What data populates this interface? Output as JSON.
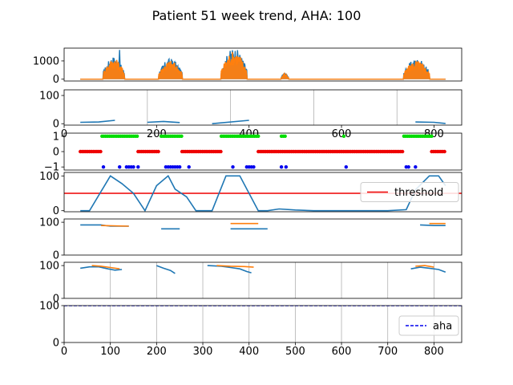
{
  "figure": {
    "title": "Patient 51 week trend, AHA: 100"
  },
  "chart_data": [
    {
      "type": "line",
      "xlim": [
        0,
        860
      ],
      "ylim": [
        -100,
        1700
      ],
      "yticks": [
        0,
        1000
      ],
      "xticks": [],
      "x_grid": [],
      "series": [
        {
          "color": "#1f77b4",
          "style": "bursts",
          "amplitude": 1.1,
          "x": [],
          "y": []
        },
        {
          "color": "#ff7f0e",
          "style": "bursts",
          "amplitude": 1.0,
          "x": [],
          "y": []
        }
      ],
      "bursts": [
        {
          "x0": 85,
          "x1": 130,
          "peak": 1000,
          "spike": 1600,
          "spike_x": 120
        },
        {
          "x0": 205,
          "x1": 255,
          "peak": 900
        },
        {
          "x0": 340,
          "x1": 395,
          "peak": 1350
        },
        {
          "x0": 470,
          "x1": 485,
          "peak": 280
        },
        {
          "x0": 735,
          "x1": 790,
          "peak": 900
        }
      ],
      "baseline_range": [
        35,
        825
      ]
    },
    {
      "type": "line",
      "xlim": [
        0,
        860
      ],
      "ylim": [
        -5,
        120
      ],
      "yticks": [
        0,
        100
      ],
      "xticks": [
        0,
        200,
        400,
        600,
        800
      ],
      "x_grid": [
        180,
        360,
        540,
        720
      ],
      "series": [
        {
          "color": "#1f77b4",
          "segments": [
            [
              [
                35,
                5
              ],
              [
                75,
                6
              ],
              [
                110,
                12
              ]
            ],
            [
              [
                180,
                5
              ],
              [
                215,
                8
              ],
              [
                250,
                4
              ]
            ],
            [
              [
                320,
                0
              ],
              [
                400,
                12
              ]
            ],
            [
              [
                760,
                6
              ],
              [
                800,
                5
              ],
              [
                825,
                1
              ]
            ]
          ]
        }
      ]
    },
    {
      "type": "scatter",
      "xlim": [
        0,
        860
      ],
      "ylim": [
        -1.2,
        1.2
      ],
      "yticks": [
        -1,
        0,
        1
      ],
      "xticks": [],
      "x_grid": [],
      "groups": [
        {
          "y": 1,
          "color": "#00dd00",
          "ranges": [
            [
              82,
              160
            ],
            [
              210,
              255
            ],
            [
              340,
              420
            ],
            [
              470,
              480
            ],
            [
              605,
              608
            ],
            [
              735,
              795
            ]
          ]
        },
        {
          "y": 0,
          "color": "#ee0000",
          "ranges": [
            [
              35,
              80
            ],
            [
              160,
              205
            ],
            [
              255,
              340
            ],
            [
              420,
              735
            ],
            [
              795,
              825
            ]
          ]
        },
        {
          "y": -1,
          "color": "#0000ee",
          "points": [
            85,
            120,
            135,
            140,
            145,
            150,
            160,
            220,
            225,
            230,
            235,
            240,
            245,
            250,
            270,
            365,
            395,
            400,
            405,
            410,
            470,
            480,
            610,
            740,
            745,
            760
          ]
        }
      ]
    },
    {
      "type": "line",
      "xlim": [
        0,
        860
      ],
      "ylim": [
        -3,
        110
      ],
      "yticks": [
        0,
        100
      ],
      "xticks": [],
      "x_grid": [],
      "legend": [
        {
          "label": "threshold",
          "color": "#ee0000",
          "style": "solid"
        }
      ],
      "legend_loc": "right",
      "hline": {
        "y": 50,
        "color": "#ee0000"
      },
      "series": [
        {
          "color": "#1f77b4",
          "segments": [
            [
              [
                35,
                0
              ],
              [
                55,
                0
              ],
              [
                100,
                100
              ],
              [
                125,
                78
              ],
              [
                150,
                50
              ],
              [
                175,
                0
              ],
              [
                200,
                72
              ],
              [
                225,
                100
              ],
              [
                240,
                62
              ],
              [
                265,
                40
              ],
              [
                285,
                0
              ],
              [
                320,
                0
              ],
              [
                350,
                100
              ],
              [
                380,
                100
              ],
              [
                420,
                0
              ],
              [
                440,
                0
              ],
              [
                465,
                5
              ],
              [
                500,
                2
              ],
              [
                540,
                0
              ],
              [
                700,
                0
              ],
              [
                740,
                3
              ],
              [
                760,
                60
              ],
              [
                790,
                100
              ],
              [
                810,
                100
              ],
              [
                825,
                72
              ]
            ]
          ]
        }
      ]
    },
    {
      "type": "line",
      "xlim": [
        0,
        860
      ],
      "ylim": [
        0,
        110
      ],
      "yticks": [
        0,
        100
      ],
      "xticks": [],
      "x_grid": [],
      "series": [
        {
          "color": "#1f77b4",
          "segments": [
            [
              [
                35,
                92
              ],
              [
                80,
                92
              ],
              [
                100,
                88
              ],
              [
                140,
                88
              ]
            ],
            [
              [
                210,
                80
              ],
              [
                250,
                80
              ]
            ],
            [
              [
                360,
                80
              ],
              [
                400,
                80
              ],
              [
                440,
                80
              ]
            ],
            [
              [
                770,
                92
              ],
              [
                800,
                90
              ],
              [
                825,
                90
              ]
            ]
          ]
        },
        {
          "color": "#ff7f0e",
          "segments": [
            [
              [
                80,
                90
              ],
              [
                140,
                88
              ]
            ],
            [
              [
                360,
                96
              ],
              [
                420,
                96
              ]
            ],
            [
              [
                790,
                96
              ],
              [
                825,
                96
              ]
            ]
          ]
        }
      ]
    },
    {
      "type": "line",
      "xlim": [
        0,
        860
      ],
      "ylim": [
        0,
        110
      ],
      "yticks": [
        0,
        100
      ],
      "xticks": [],
      "x_grid": [
        100,
        200,
        300,
        400,
        500,
        600,
        700,
        800
      ],
      "series": [
        {
          "color": "#1f77b4",
          "segments": [
            [
              [
                35,
                92
              ],
              [
                55,
                96
              ],
              [
                75,
                96
              ],
              [
                95,
                90
              ],
              [
                110,
                86
              ],
              [
                125,
                88
              ]
            ],
            [
              [
                200,
                100
              ],
              [
                215,
                92
              ],
              [
                230,
                85
              ],
              [
                240,
                76
              ]
            ],
            [
              [
                310,
                100
              ],
              [
                340,
                98
              ],
              [
                360,
                94
              ],
              [
                380,
                90
              ],
              [
                395,
                82
              ],
              [
                405,
                78
              ]
            ],
            [
              [
                750,
                90
              ],
              [
                770,
                95
              ],
              [
                790,
                92
              ],
              [
                810,
                88
              ],
              [
                825,
                80
              ]
            ]
          ]
        },
        {
          "color": "#ff7f0e",
          "segments": [
            [
              [
                60,
                100
              ],
              [
                80,
                98
              ],
              [
                100,
                94
              ],
              [
                120,
                90
              ]
            ],
            [
              [
                330,
                100
              ],
              [
                360,
                98
              ],
              [
                390,
                97
              ],
              [
                410,
                95
              ]
            ],
            [
              [
                760,
                98
              ],
              [
                780,
                100
              ],
              [
                800,
                95
              ]
            ]
          ]
        }
      ]
    },
    {
      "type": "line",
      "xlim": [
        0,
        860
      ],
      "ylim": [
        0,
        100
      ],
      "yticks": [
        0,
        100
      ],
      "xticks": [
        0,
        100,
        200,
        300,
        400,
        500,
        600,
        700,
        800
      ],
      "x_grid": [
        100,
        200,
        300,
        400,
        500,
        600,
        700,
        800
      ],
      "legend": [
        {
          "label": "aha",
          "color": "#0000ee",
          "style": "dashed"
        }
      ],
      "legend_loc": "right",
      "hline": {
        "y": 100,
        "color": "#0000ee",
        "dashed": true
      },
      "series": []
    }
  ]
}
